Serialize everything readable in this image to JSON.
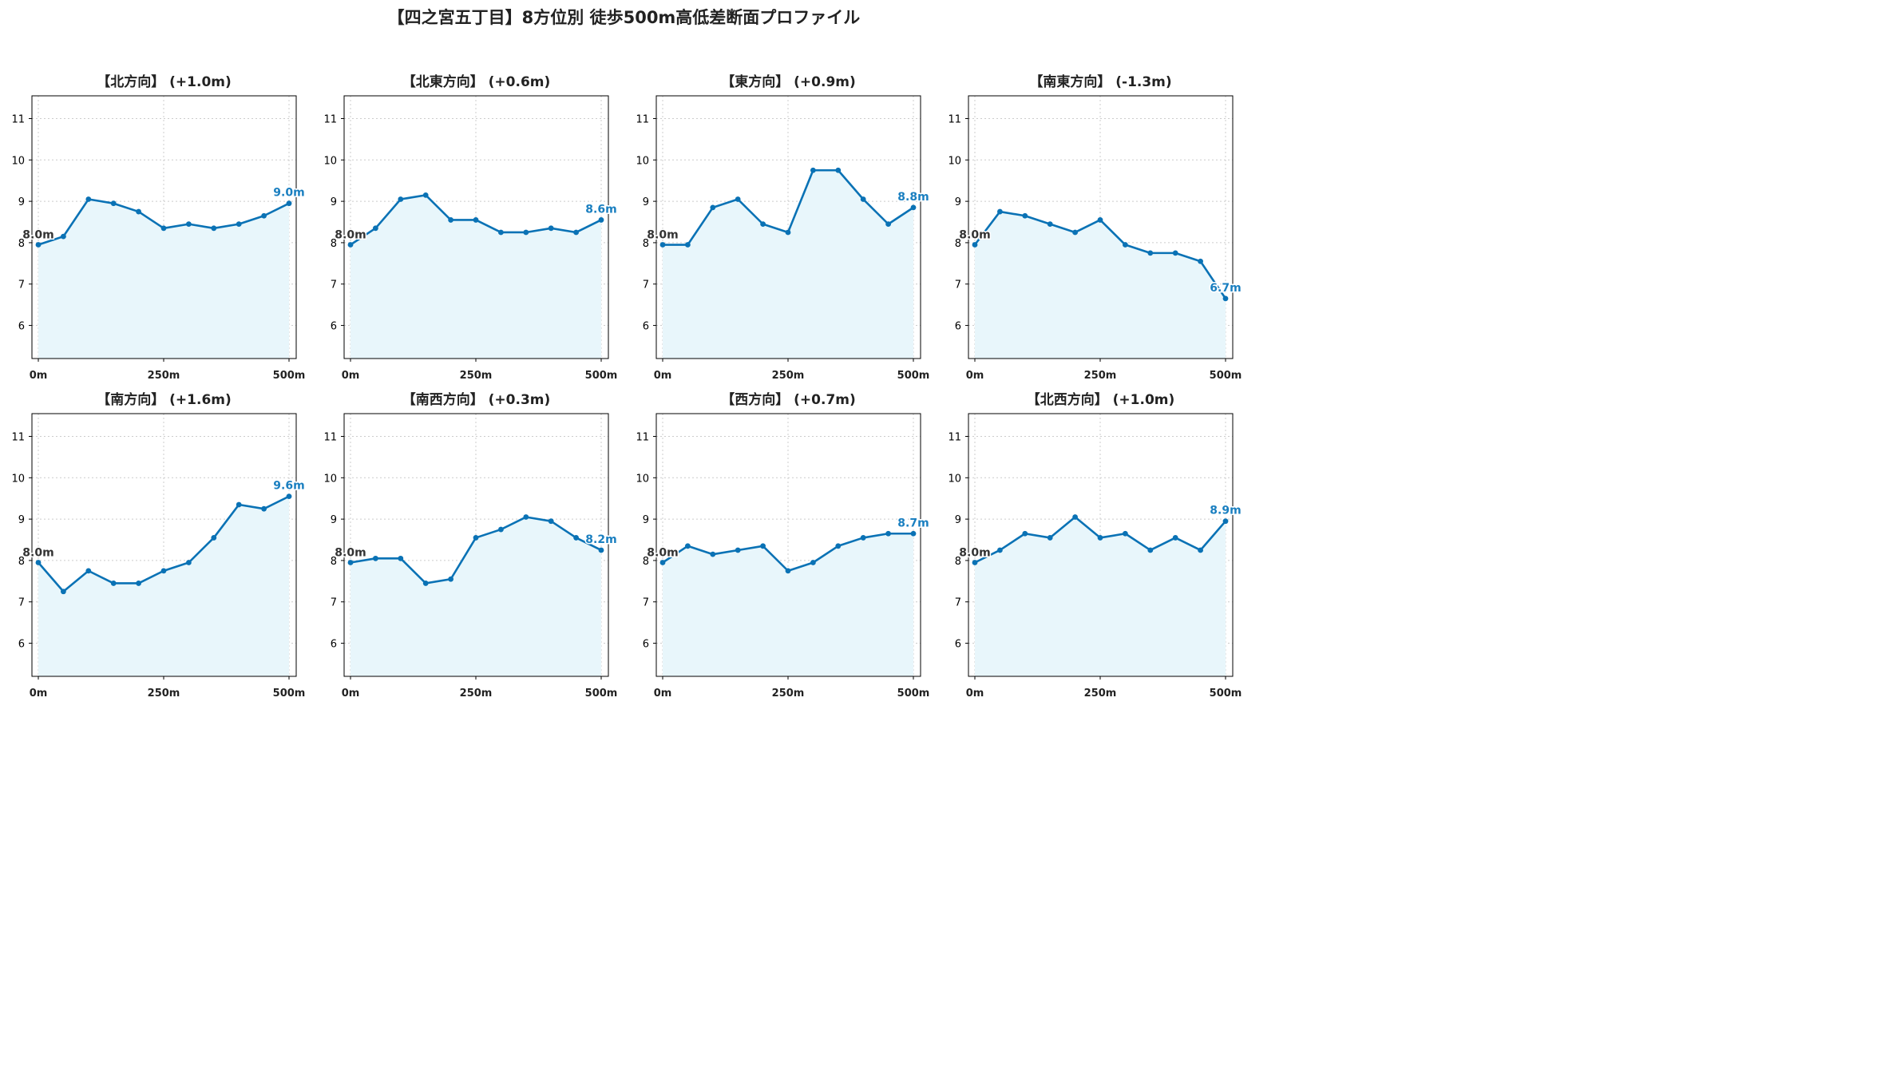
{
  "title": "【四之宮五丁目】8方位別 徒歩500m高低差断面プロファイル",
  "colors": {
    "line": "#0a72b5",
    "fill": "#e8f6fb",
    "grid": "#cccccc",
    "axis": "#000000",
    "start_label": "#333333",
    "end_label": "#1a7fc0"
  },
  "chart_data": [
    {
      "type": "area",
      "title": "【北方向】 (+1.0m)",
      "x": [
        0,
        50,
        100,
        150,
        200,
        250,
        300,
        350,
        400,
        450,
        500
      ],
      "y": [
        7.95,
        8.15,
        9.05,
        8.95,
        8.75,
        8.35,
        8.45,
        8.35,
        8.45,
        8.65,
        8.95
      ],
      "start_label": "8.0m",
      "end_label": "9.0m",
      "xticks": [
        "0m",
        "250m",
        "500m"
      ],
      "yticks": [
        6,
        7,
        8,
        9,
        10,
        11
      ],
      "xlim": [
        0,
        500
      ],
      "ylim": [
        5.2,
        11.55
      ],
      "grid": true
    },
    {
      "type": "area",
      "title": "【北東方向】 (+0.6m)",
      "x": [
        0,
        50,
        100,
        150,
        200,
        250,
        300,
        350,
        400,
        450,
        500
      ],
      "y": [
        7.95,
        8.35,
        9.05,
        9.15,
        8.55,
        8.55,
        8.25,
        8.25,
        8.35,
        8.25,
        8.55
      ],
      "start_label": "8.0m",
      "end_label": "8.6m",
      "xticks": [
        "0m",
        "250m",
        "500m"
      ],
      "yticks": [
        6,
        7,
        8,
        9,
        10,
        11
      ],
      "xlim": [
        0,
        500
      ],
      "ylim": [
        5.2,
        11.55
      ],
      "grid": true
    },
    {
      "type": "area",
      "title": "【東方向】 (+0.9m)",
      "x": [
        0,
        50,
        100,
        150,
        200,
        250,
        300,
        350,
        400,
        450,
        500
      ],
      "y": [
        7.95,
        7.95,
        8.85,
        9.05,
        8.45,
        8.25,
        9.75,
        9.75,
        9.05,
        8.45,
        8.85
      ],
      "start_label": "8.0m",
      "end_label": "8.8m",
      "xticks": [
        "0m",
        "250m",
        "500m"
      ],
      "yticks": [
        6,
        7,
        8,
        9,
        10,
        11
      ],
      "xlim": [
        0,
        500
      ],
      "ylim": [
        5.2,
        11.55
      ],
      "grid": true
    },
    {
      "type": "area",
      "title": "【南東方向】 (-1.3m)",
      "x": [
        0,
        50,
        100,
        150,
        200,
        250,
        300,
        350,
        400,
        450,
        500
      ],
      "y": [
        7.95,
        8.75,
        8.65,
        8.45,
        8.25,
        8.55,
        7.95,
        7.75,
        7.75,
        7.55,
        6.65
      ],
      "start_label": "8.0m",
      "end_label": "6.7m",
      "xticks": [
        "0m",
        "250m",
        "500m"
      ],
      "yticks": [
        6,
        7,
        8,
        9,
        10,
        11
      ],
      "xlim": [
        0,
        500
      ],
      "ylim": [
        5.2,
        11.55
      ],
      "grid": true
    },
    {
      "type": "area",
      "title": "【南方向】 (+1.6m)",
      "x": [
        0,
        50,
        100,
        150,
        200,
        250,
        300,
        350,
        400,
        450,
        500
      ],
      "y": [
        7.95,
        7.25,
        7.75,
        7.45,
        7.45,
        7.75,
        7.95,
        8.55,
        9.35,
        9.25,
        9.55
      ],
      "start_label": "8.0m",
      "end_label": "9.6m",
      "xticks": [
        "0m",
        "250m",
        "500m"
      ],
      "yticks": [
        6,
        7,
        8,
        9,
        10,
        11
      ],
      "xlim": [
        0,
        500
      ],
      "ylim": [
        5.2,
        11.55
      ],
      "grid": true
    },
    {
      "type": "area",
      "title": "【南西方向】 (+0.3m)",
      "x": [
        0,
        50,
        100,
        150,
        200,
        250,
        300,
        350,
        400,
        450,
        500
      ],
      "y": [
        7.95,
        8.05,
        8.05,
        7.45,
        7.55,
        8.55,
        8.75,
        9.05,
        8.95,
        8.55,
        8.25
      ],
      "start_label": "8.0m",
      "end_label": "8.2m",
      "xticks": [
        "0m",
        "250m",
        "500m"
      ],
      "yticks": [
        6,
        7,
        8,
        9,
        10,
        11
      ],
      "xlim": [
        0,
        500
      ],
      "ylim": [
        5.2,
        11.55
      ],
      "grid": true
    },
    {
      "type": "area",
      "title": "【西方向】 (+0.7m)",
      "x": [
        0,
        50,
        100,
        150,
        200,
        250,
        300,
        350,
        400,
        450,
        500
      ],
      "y": [
        7.95,
        8.35,
        8.15,
        8.25,
        8.35,
        7.75,
        7.95,
        8.35,
        8.55,
        8.65,
        8.65
      ],
      "start_label": "8.0m",
      "end_label": "8.7m",
      "xticks": [
        "0m",
        "250m",
        "500m"
      ],
      "yticks": [
        6,
        7,
        8,
        9,
        10,
        11
      ],
      "xlim": [
        0,
        500
      ],
      "ylim": [
        5.2,
        11.55
      ],
      "grid": true
    },
    {
      "type": "area",
      "title": "【北西方向】 (+1.0m)",
      "x": [
        0,
        50,
        100,
        150,
        200,
        250,
        300,
        350,
        400,
        450,
        500
      ],
      "y": [
        7.95,
        8.25,
        8.65,
        8.55,
        9.05,
        8.55,
        8.65,
        8.25,
        8.55,
        8.25,
        8.95
      ],
      "start_label": "8.0m",
      "end_label": "8.9m",
      "xticks": [
        "0m",
        "250m",
        "500m"
      ],
      "yticks": [
        6,
        7,
        8,
        9,
        10,
        11
      ],
      "xlim": [
        0,
        500
      ],
      "ylim": [
        5.2,
        11.55
      ],
      "grid": true
    }
  ]
}
